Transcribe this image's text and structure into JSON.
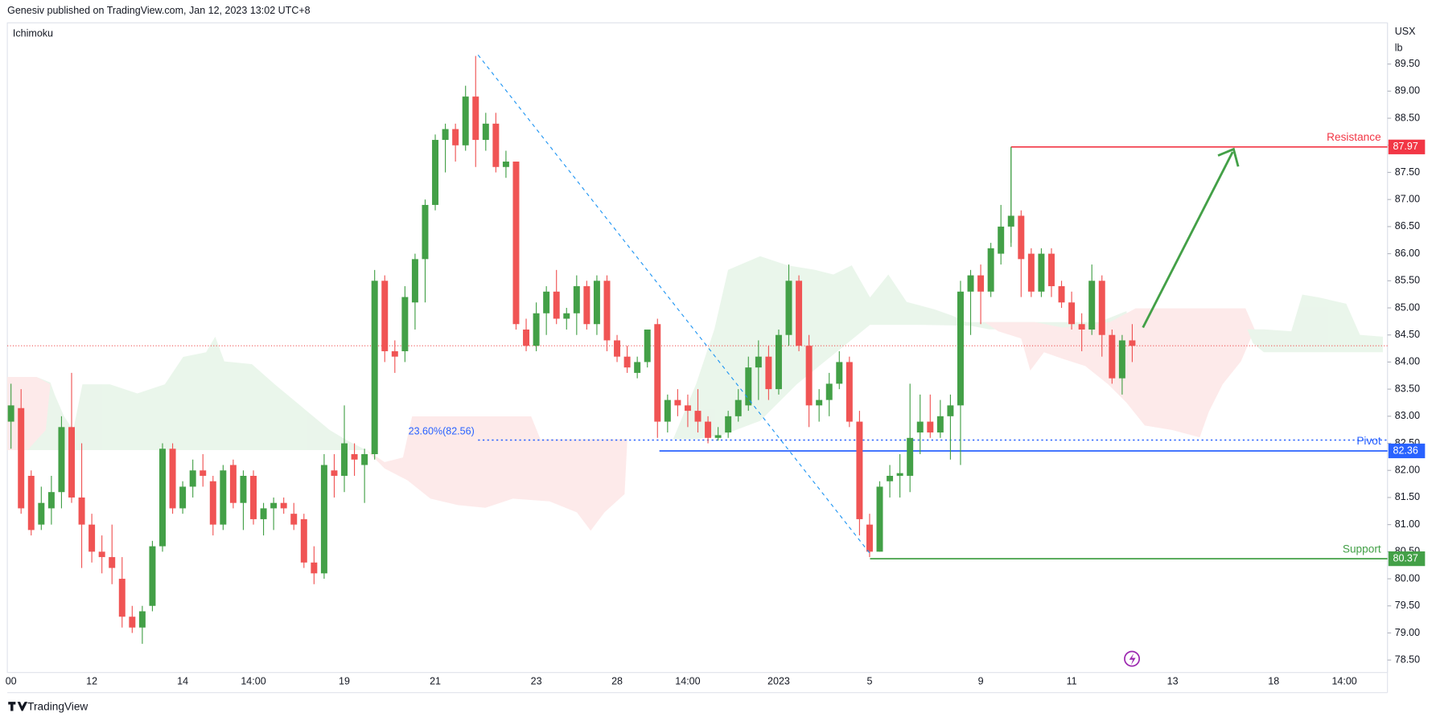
{
  "header": {
    "publisher": "Genesiv published on TradingView.com, Jan 12, 2023 13:02 UTC+8",
    "brand": "TradingView"
  },
  "chart_data": {
    "type": "candlestick",
    "indicator": "Ichimoku",
    "currency": "USX",
    "unit": "lb",
    "up_color": "#43a047",
    "down_color": "#f05454",
    "ylim": [
      78.27,
      90.26
    ],
    "yticks": [
      {
        "value": 78.5,
        "label": "78.50"
      },
      {
        "value": 79,
        "label": "79.00"
      },
      {
        "value": 79.5,
        "label": "79.50"
      },
      {
        "value": 80,
        "label": "80.00"
      },
      {
        "value": 80.5,
        "label": "80.50"
      },
      {
        "value": 81,
        "label": "81.00"
      },
      {
        "value": 81.5,
        "label": "81.50"
      },
      {
        "value": 82,
        "label": "82.00"
      },
      {
        "value": 82.5,
        "label": "82.50"
      },
      {
        "value": 83,
        "label": "83.00"
      },
      {
        "value": 83.5,
        "label": "83.50"
      },
      {
        "value": 84,
        "label": "84.00"
      },
      {
        "value": 84.5,
        "label": "84.50"
      },
      {
        "value": 85,
        "label": "85.00"
      },
      {
        "value": 85.5,
        "label": "85.50"
      },
      {
        "value": 86,
        "label": "86.00"
      },
      {
        "value": 86.5,
        "label": "86.50"
      },
      {
        "value": 87,
        "label": "87.00"
      },
      {
        "value": 87.5,
        "label": "87.50"
      },
      {
        "value": 88,
        "label": "88.00"
      },
      {
        "value": 88.5,
        "label": "88.50"
      },
      {
        "value": 89,
        "label": "89.00"
      },
      {
        "value": 89.5,
        "label": "89.50"
      }
    ],
    "categories": [
      "00",
      null,
      null,
      null,
      null,
      null,
      null,
      null,
      "12",
      null,
      null,
      null,
      null,
      null,
      null,
      null,
      null,
      "14",
      null,
      null,
      null,
      null,
      null,
      null,
      "14:00",
      null,
      null,
      null,
      null,
      null,
      null,
      null,
      null,
      "19",
      null,
      null,
      null,
      null,
      null,
      null,
      null,
      null,
      "21",
      null,
      null,
      null,
      null,
      null,
      null,
      null,
      null,
      null,
      "23",
      null,
      null,
      null,
      null,
      null,
      null,
      null,
      "28",
      null,
      null,
      null,
      null,
      null,
      null,
      "14:00",
      null,
      null,
      null,
      null,
      null,
      null,
      null,
      null,
      "2023",
      null,
      null,
      null,
      null,
      null,
      null,
      null,
      null,
      "5",
      null,
      null,
      null,
      null,
      null,
      null,
      null,
      null,
      null,
      null,
      "9",
      null,
      null,
      null,
      null,
      null,
      null,
      null,
      null,
      "11",
      null,
      null,
      null,
      null,
      null,
      null,
      null,
      null,
      null,
      "13",
      null,
      null,
      null,
      null,
      null,
      null,
      null,
      null,
      null,
      "18",
      null,
      null,
      null,
      null,
      null,
      null,
      "14:00",
      null,
      null,
      null
    ],
    "candles": [
      [
        82.9,
        83.6,
        82.4,
        83.2
      ],
      [
        83.15,
        83.5,
        81.2,
        81.3
      ],
      [
        81.9,
        82.0,
        80.8,
        80.9
      ],
      [
        81.0,
        81.7,
        80.9,
        81.4
      ],
      [
        81.3,
        81.9,
        81.0,
        81.6
      ],
      [
        81.6,
        83.0,
        81.3,
        82.8
      ],
      [
        82.8,
        83.8,
        81.4,
        81.5
      ],
      [
        81.5,
        82.5,
        80.2,
        81.0
      ],
      [
        81.0,
        81.2,
        80.3,
        80.5
      ],
      [
        80.5,
        80.8,
        80.1,
        80.4
      ],
      [
        80.4,
        81.0,
        79.9,
        80.2
      ],
      [
        80.0,
        80.4,
        79.1,
        79.3
      ],
      [
        79.3,
        79.5,
        79.0,
        79.1
      ],
      [
        79.1,
        79.5,
        78.8,
        79.4
      ],
      [
        79.5,
        80.7,
        79.4,
        80.6
      ],
      [
        80.6,
        82.5,
        80.5,
        82.4
      ],
      [
        82.4,
        82.5,
        81.2,
        81.3
      ],
      [
        81.3,
        81.8,
        81.2,
        81.7
      ],
      [
        81.7,
        82.2,
        81.5,
        82.0
      ],
      [
        82.0,
        82.3,
        81.7,
        81.9
      ],
      [
        81.8,
        81.9,
        80.8,
        81.0
      ],
      [
        81.0,
        82.1,
        80.9,
        82.0
      ],
      [
        82.1,
        82.2,
        81.3,
        81.4
      ],
      [
        81.4,
        82.0,
        80.9,
        81.9
      ],
      [
        81.9,
        82.0,
        81.0,
        81.1
      ],
      [
        81.1,
        81.4,
        80.8,
        81.3
      ],
      [
        81.3,
        81.5,
        80.9,
        81.4
      ],
      [
        81.4,
        81.5,
        81.2,
        81.3
      ],
      [
        81.2,
        81.4,
        80.9,
        81.0
      ],
      [
        81.1,
        81.2,
        80.2,
        80.3
      ],
      [
        80.3,
        80.6,
        79.9,
        80.1
      ],
      [
        80.1,
        82.3,
        80.0,
        82.1
      ],
      [
        82.0,
        82.3,
        81.5,
        81.9
      ],
      [
        81.9,
        83.2,
        81.6,
        82.5
      ],
      [
        82.3,
        82.5,
        81.9,
        82.2
      ],
      [
        82.1,
        82.4,
        81.4,
        82.3
      ],
      [
        82.3,
        85.7,
        82.2,
        85.5
      ],
      [
        85.5,
        85.6,
        84.0,
        84.2
      ],
      [
        84.2,
        84.4,
        83.8,
        84.1
      ],
      [
        84.2,
        85.4,
        84.0,
        85.2
      ],
      [
        85.1,
        86.0,
        84.6,
        85.9
      ],
      [
        85.9,
        87.0,
        85.1,
        86.9
      ],
      [
        86.9,
        88.2,
        86.8,
        88.1
      ],
      [
        88.1,
        88.4,
        87.5,
        88.3
      ],
      [
        88.3,
        88.4,
        87.7,
        88.0
      ],
      [
        88.0,
        89.1,
        87.9,
        88.9
      ],
      [
        88.9,
        89.65,
        87.6,
        88.1
      ],
      [
        88.1,
        88.6,
        87.9,
        88.4
      ],
      [
        88.4,
        88.6,
        87.5,
        87.6
      ],
      [
        87.6,
        87.9,
        87.4,
        87.7
      ],
      [
        87.7,
        87.7,
        84.6,
        84.7
      ],
      [
        84.6,
        84.8,
        84.2,
        84.3
      ],
      [
        84.3,
        85.1,
        84.2,
        84.9
      ],
      [
        84.9,
        85.4,
        84.5,
        85.3
      ],
      [
        85.3,
        85.7,
        84.7,
        84.8
      ],
      [
        84.8,
        85.0,
        84.6,
        84.9
      ],
      [
        84.9,
        85.6,
        84.5,
        85.4
      ],
      [
        85.4,
        85.5,
        84.6,
        84.7
      ],
      [
        84.7,
        85.6,
        84.5,
        85.5
      ],
      [
        85.5,
        85.6,
        84.2,
        84.4
      ],
      [
        84.4,
        84.5,
        84.0,
        84.1
      ],
      [
        84.1,
        84.3,
        83.8,
        83.9
      ],
      [
        83.8,
        84.1,
        83.7,
        84.0
      ],
      [
        84.0,
        84.6,
        83.9,
        84.6
      ],
      [
        84.7,
        84.8,
        82.6,
        82.9
      ],
      [
        82.9,
        83.4,
        82.7,
        83.3
      ],
      [
        83.3,
        83.5,
        83.0,
        83.2
      ],
      [
        83.2,
        83.4,
        82.8,
        83.1
      ],
      [
        83.1,
        83.5,
        82.7,
        82.9
      ],
      [
        82.9,
        83.0,
        82.5,
        82.6
      ],
      [
        82.6,
        82.8,
        82.55,
        82.65
      ],
      [
        82.7,
        83.1,
        82.6,
        83.0
      ],
      [
        83.0,
        83.5,
        82.9,
        83.3
      ],
      [
        83.2,
        84.1,
        83.1,
        83.9
      ],
      [
        83.9,
        84.4,
        83.3,
        84.1
      ],
      [
        84.1,
        84.3,
        83.3,
        83.5
      ],
      [
        83.5,
        84.6,
        83.4,
        84.5
      ],
      [
        84.5,
        85.8,
        84.3,
        85.5
      ],
      [
        85.5,
        85.6,
        84.2,
        84.3
      ],
      [
        84.3,
        84.5,
        82.8,
        83.2
      ],
      [
        83.2,
        83.5,
        82.9,
        83.3
      ],
      [
        83.3,
        83.8,
        83.0,
        83.6
      ],
      [
        83.6,
        84.2,
        83.5,
        84.0
      ],
      [
        84.0,
        84.1,
        82.8,
        82.9
      ],
      [
        82.9,
        83.1,
        80.8,
        81.1
      ],
      [
        81.0,
        81.2,
        80.4,
        80.5
      ],
      [
        80.5,
        81.8,
        80.5,
        81.7
      ],
      [
        81.8,
        82.1,
        81.5,
        81.9
      ],
      [
        81.9,
        82.3,
        81.5,
        81.95
      ],
      [
        81.9,
        83.6,
        81.6,
        82.6
      ],
      [
        82.7,
        83.4,
        82.3,
        82.9
      ],
      [
        82.9,
        83.4,
        82.6,
        82.7
      ],
      [
        82.7,
        83.3,
        82.6,
        83.0
      ],
      [
        83.0,
        83.4,
        82.2,
        83.2
      ],
      [
        83.2,
        85.5,
        82.1,
        85.3
      ],
      [
        85.3,
        85.7,
        84.5,
        85.6
      ],
      [
        85.6,
        85.8,
        84.7,
        85.3
      ],
      [
        85.3,
        86.2,
        85.2,
        86.1
      ],
      [
        86.0,
        86.9,
        85.8,
        86.5
      ],
      [
        86.5,
        87.97,
        86.2,
        86.7
      ],
      [
        86.7,
        86.8,
        85.2,
        85.9
      ],
      [
        86.0,
        86.1,
        85.2,
        85.3
      ],
      [
        85.3,
        86.1,
        85.2,
        86.0
      ],
      [
        86.0,
        86.1,
        85.2,
        85.4
      ],
      [
        85.4,
        85.5,
        85.0,
        85.1
      ],
      [
        85.1,
        85.3,
        84.6,
        84.7
      ],
      [
        84.7,
        84.9,
        84.2,
        84.6
      ],
      [
        84.6,
        85.8,
        84.5,
        85.5
      ],
      [
        85.5,
        85.6,
        84.1,
        84.5
      ],
      [
        84.5,
        84.6,
        83.6,
        83.7
      ],
      [
        83.7,
        84.5,
        83.4,
        84.4
      ],
      [
        84.4,
        84.7,
        84.0,
        84.3
      ],
      null,
      null,
      null,
      null,
      null,
      null,
      null,
      null,
      null,
      null,
      null,
      null,
      null,
      null,
      null,
      null,
      null,
      null,
      null,
      null,
      null,
      null,
      null,
      null
    ],
    "levels": [
      {
        "label": "Resistance",
        "value": 87.97,
        "color": "#f23645"
      },
      {
        "label": "Pivot",
        "value": 82.36,
        "color": "#2962ff"
      },
      {
        "label": "Support",
        "value": 80.37,
        "color": "#43a047"
      }
    ],
    "fib": {
      "label": "23.60%(82.56)",
      "value": 82.56,
      "color": "#2962ff"
    }
  }
}
